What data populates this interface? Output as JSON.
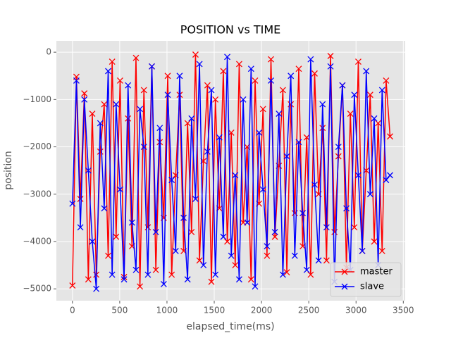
{
  "chart_data": {
    "type": "line",
    "title": "POSITION vs TIME",
    "x_label": "elapsed_time(ms)",
    "y_label": "position",
    "x": [
      0,
      42,
      84,
      126,
      168,
      210,
      252,
      294,
      336,
      378,
      420,
      462,
      504,
      546,
      588,
      630,
      672,
      714,
      756,
      798,
      840,
      882,
      924,
      966,
      1008,
      1050,
      1092,
      1134,
      1176,
      1218,
      1260,
      1302,
      1344,
      1386,
      1428,
      1470,
      1512,
      1554,
      1596,
      1638,
      1680,
      1722,
      1764,
      1806,
      1848,
      1890,
      1932,
      1974,
      2016,
      2058,
      2100,
      2142,
      2184,
      2226,
      2268,
      2310,
      2352,
      2394,
      2436,
      2478,
      2520,
      2562,
      2604,
      2646,
      2688,
      2730,
      2772,
      2814,
      2856,
      2898,
      2940,
      2982,
      3024,
      3066,
      3108,
      3150,
      3192,
      3234,
      3276,
      3318,
      3360
    ],
    "series": [
      {
        "name": "master",
        "color": "#ff0000",
        "values": [
          -4930,
          -520,
          -3100,
          -870,
          -4800,
          -1300,
          -4700,
          -2100,
          -1100,
          -4300,
          -200,
          -3900,
          -600,
          -4750,
          -1400,
          -4100,
          -120,
          -4950,
          -800,
          -3700,
          -300,
          -4600,
          -1900,
          -3500,
          -500,
          -4700,
          -2600,
          -900,
          -4200,
          -1500,
          -3800,
          -50,
          -4400,
          -2300,
          -700,
          -4850,
          -1000,
          -3300,
          -400,
          -4000,
          -1700,
          -4500,
          -250,
          -3600,
          -2000,
          -4800,
          -600,
          -3200,
          -1200,
          -4300,
          -150,
          -3900,
          -2400,
          -800,
          -4650,
          -1100,
          -3400,
          -350,
          -4100,
          -1800,
          -4700,
          -450,
          -3000,
          -1600,
          -4400,
          -80,
          -3800,
          -2200,
          -700,
          -4550,
          -1300,
          -3700,
          -200,
          -4200,
          -2500,
          -900,
          -4000,
          -1500,
          -4200,
          -600,
          -1780
        ]
      },
      {
        "name": "slave",
        "color": "#0000ff",
        "values": [
          -3200,
          -600,
          -3700,
          -1000,
          -2500,
          -4000,
          -5000,
          -1500,
          -3300,
          -400,
          -4700,
          -1100,
          -2900,
          -4800,
          -700,
          -3600,
          -4600,
          -1200,
          -2000,
          -4700,
          -300,
          -3800,
          -1600,
          -4900,
          -900,
          -2700,
          -4200,
          -500,
          -3500,
          -4800,
          -1400,
          -3100,
          -250,
          -4500,
          -2100,
          -800,
          -4700,
          -1800,
          -3900,
          -100,
          -4300,
          -2600,
          -4800,
          -1000,
          -3600,
          -350,
          -4950,
          -1700,
          -2900,
          -4100,
          -600,
          -3800,
          -1300,
          -4700,
          -2200,
          -500,
          -4300,
          -1900,
          -3400,
          -4600,
          -150,
          -2800,
          -4400,
          -1100,
          -3700,
          -300,
          -4850,
          -2000,
          -700,
          -3300,
          -4600,
          -900,
          -2600,
          -4200,
          -400,
          -3000,
          -1400,
          -4500,
          -800,
          -2700,
          -2600
        ]
      }
    ],
    "xlim": [
      -170,
      3520
    ],
    "ylim": [
      -5250,
      240
    ],
    "xticks": [
      0,
      500,
      1000,
      1500,
      2000,
      2500,
      3000,
      3500
    ],
    "yticks": [
      0,
      {
        "value": -1000,
        "label": "−1000"
      },
      {
        "value": -2000,
        "label": "−2000"
      },
      {
        "value": -3000,
        "label": "−3000"
      },
      {
        "value": -4000,
        "label": "−4000"
      },
      {
        "value": -5000,
        "label": "−5000"
      }
    ],
    "grid": true,
    "legend": "lower right"
  }
}
